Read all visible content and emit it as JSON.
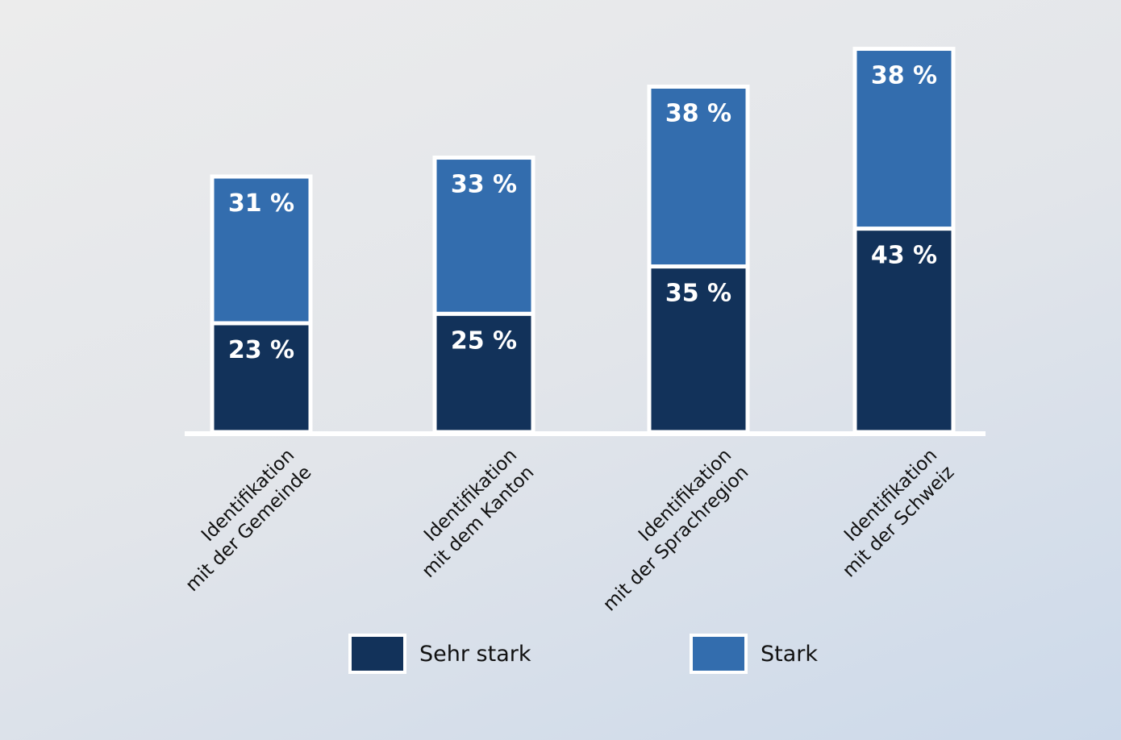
{
  "chart_data": {
    "type": "bar",
    "stacked": true,
    "categories": [
      [
        "Identifikation",
        "mit der Gemeinde"
      ],
      [
        "Identifikation",
        "mit dem Kanton"
      ],
      [
        "Identifikation",
        "mit der Sprachregion"
      ],
      [
        "Identifikation",
        "mit der Schweiz"
      ]
    ],
    "series": [
      {
        "name": "Sehr stark",
        "values": [
          23,
          25,
          35,
          43
        ],
        "labels": [
          "23 %",
          "25 %",
          "35 %",
          "43 %"
        ],
        "color": "#12325a"
      },
      {
        "name": "Stark",
        "values": [
          31,
          33,
          38,
          38
        ],
        "labels": [
          "31 %",
          "33 %",
          "38 %",
          "38 %"
        ],
        "color": "#336dae"
      }
    ],
    "value_unit": "%",
    "legend_position": "bottom",
    "grid": false
  },
  "legend": {
    "items": [
      {
        "label": "Sehr stark",
        "color": "#12325a"
      },
      {
        "label": "Stark",
        "color": "#336dae"
      }
    ]
  }
}
